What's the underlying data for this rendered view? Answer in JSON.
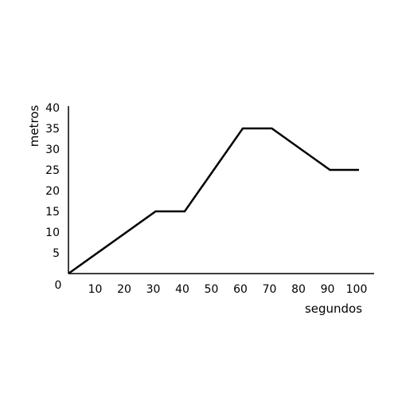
{
  "chart_data": {
    "type": "line",
    "title": "",
    "xlabel": "segundos",
    "ylabel": "metros",
    "origin_label": "0",
    "xlim": [
      0,
      100
    ],
    "ylim": [
      0,
      40
    ],
    "x_ticks": [
      10,
      20,
      30,
      40,
      50,
      60,
      70,
      80,
      90,
      100
    ],
    "x_tick_labels": [
      "10",
      "20",
      "30",
      "40",
      "50",
      "60",
      "70",
      "80",
      "90",
      "100"
    ],
    "y_ticks": [
      5,
      10,
      15,
      20,
      25,
      30,
      35,
      40
    ],
    "y_tick_labels": [
      "5",
      "10",
      "15",
      "20",
      "25",
      "30",
      "35",
      "40"
    ],
    "grid": false,
    "legend": "none",
    "series": [
      {
        "x": [
          0,
          30,
          40,
          60,
          70,
          90,
          100
        ],
        "y": [
          0,
          15,
          15,
          35,
          35,
          25,
          25
        ]
      }
    ],
    "colors": {
      "line": "#000000",
      "axis": "#000000",
      "text": "#000000",
      "background": "#ffffff"
    }
  }
}
